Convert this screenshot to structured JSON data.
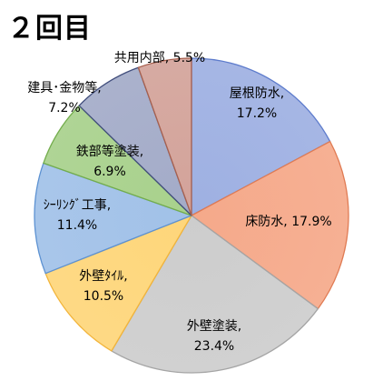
{
  "chart_data": {
    "type": "pie",
    "title": "２回目",
    "start_angle_deg": 0,
    "direction": "clockwise",
    "legend": "none",
    "slices": [
      {
        "name": "屋根防水",
        "value": 17.2,
        "percent_label": "17.2%",
        "color": "#9eb0e2",
        "edge": "#5e7ccc",
        "label_lines": [
          "屋根防水,",
          "17.2%"
        ]
      },
      {
        "name": "床防水",
        "value": 17.9,
        "percent_label": "17.9%",
        "color": "#f5a98a",
        "edge": "#e07b53",
        "label_lines": [
          "床防水, 17.9%"
        ]
      },
      {
        "name": "外壁塗装",
        "value": 23.4,
        "percent_label": "23.4%",
        "color": "#cdcdcd",
        "edge": "#a5a5a5",
        "label_lines": [
          "外壁塗装,",
          "23.4%"
        ]
      },
      {
        "name": "外壁ﾀｲﾙ",
        "value": 10.5,
        "percent_label": "10.5%",
        "color": "#fed67a",
        "edge": "#f2b43a",
        "label_lines": [
          "外壁ﾀｲﾙ,",
          "10.5%"
        ]
      },
      {
        "name": "ｼｰﾘﾝｸﾞ工事",
        "value": 11.4,
        "percent_label": "11.4%",
        "color": "#a1c1e8",
        "edge": "#5d92d2",
        "label_lines": [
          "ｼｰﾘﾝｸﾞ工事,",
          "11.4%"
        ]
      },
      {
        "name": "鉄部等塗装",
        "value": 6.9,
        "percent_label": "6.9%",
        "color": "#a8d18c",
        "edge": "#73ad4c",
        "label_lines": [
          "鉄部等塗装,",
          "6.9%"
        ]
      },
      {
        "name": "建具･金物等",
        "value": 7.2,
        "percent_label": "7.2%",
        "color": "#a3abc8",
        "edge": "#414e7c",
        "label_lines": [
          "建具･金物等,",
          "7.2%"
        ]
      },
      {
        "name": "共用内部",
        "value": 5.5,
        "percent_label": "5.5%",
        "color": "#d3a39a",
        "edge": "#a8614f",
        "label_lines": [
          "共用内部, 5.5%"
        ]
      }
    ]
  }
}
